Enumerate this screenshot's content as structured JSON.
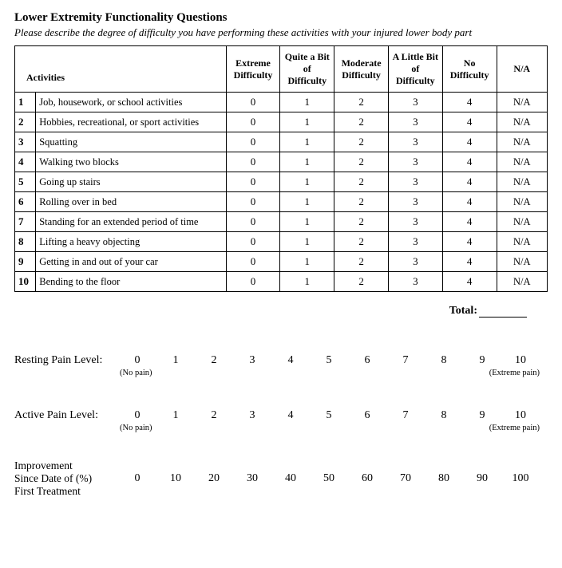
{
  "title": "Lower Extremity Functionality Questions",
  "subtitle": "Please describe the degree of difficulty you have  performing these activities with your injured lower body part",
  "table": {
    "headers": {
      "activities": "Activities",
      "cols": [
        "Extreme Difficulty",
        "Quite a Bit of Difficulty",
        "Moderate Difficulty",
        "A Little Bit of Difficulty",
        "No Difficulty",
        "N/A"
      ]
    },
    "value_labels": [
      "0",
      "1",
      "2",
      "3",
      "4",
      "N/A"
    ],
    "rows": [
      {
        "n": "1",
        "activity": "Job, housework, or school activities"
      },
      {
        "n": "2",
        "activity": "Hobbies, recreational, or sport activities"
      },
      {
        "n": "3",
        "activity": "Squatting"
      },
      {
        "n": "4",
        "activity": "Walking two blocks"
      },
      {
        "n": "5",
        "activity": "Going up stairs"
      },
      {
        "n": "6",
        "activity": "Rolling over in bed"
      },
      {
        "n": "7",
        "activity": "Standing for an extended period of time"
      },
      {
        "n": "8",
        "activity": "Lifting a heavy objecting"
      },
      {
        "n": "9",
        "activity": "Getting in and out of your car"
      },
      {
        "n": "10",
        "activity": "Bending to the floor"
      }
    ]
  },
  "total_label": "Total:",
  "scales": {
    "resting": {
      "label": "Resting Pain Level:",
      "values": [
        "0",
        "1",
        "2",
        "3",
        "4",
        "5",
        "6",
        "7",
        "8",
        "9",
        "10"
      ],
      "left_caption": "(No pain)",
      "right_caption": "(Extreme pain)"
    },
    "active": {
      "label": "Active Pain Level:",
      "values": [
        "0",
        "1",
        "2",
        "3",
        "4",
        "5",
        "6",
        "7",
        "8",
        "9",
        "10"
      ],
      "left_caption": "(No pain)",
      "right_caption": "(Extreme pain)"
    },
    "improvement": {
      "label_line1": "Improvement",
      "label_line2": "Since Date of   (%)",
      "label_line3": "First Treatment",
      "values": [
        "0",
        "10",
        "20",
        "30",
        "40",
        "50",
        "60",
        "70",
        "80",
        "90",
        "100"
      ]
    }
  }
}
